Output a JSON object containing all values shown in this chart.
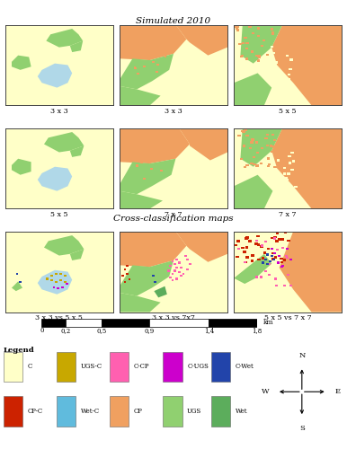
{
  "title1": "Simulated 2010",
  "title2": "Cross-classification maps",
  "panel_labels": [
    [
      "3 x 3",
      "3 x 3",
      "5 x 5"
    ],
    [
      "5 x 5",
      "7 x 7",
      "7 x 7"
    ],
    [
      "3 x 3 vs 5 x 5",
      "3 x 3 vs 7x7",
      "5 x 5 vs 7 x 7"
    ]
  ],
  "colors": {
    "C": "#FFFFC8",
    "UGS": "#90D070",
    "CP": "#F0A060",
    "W": "#B0D8E8",
    "Wet": "#5CAD5C",
    "UGS_C": "#C8A800",
    "CP_C": "#CC2200",
    "Wet_C": "#60BBDD",
    "C_CP": "#FF60B0",
    "C_UGS": "#CC00CC",
    "C_Wet": "#2244AA",
    "border": "#444444"
  },
  "scalebar_ticks": [
    0,
    0.2,
    0.5,
    0.9,
    1.4,
    1.8
  ],
  "scalebar_label": "km"
}
